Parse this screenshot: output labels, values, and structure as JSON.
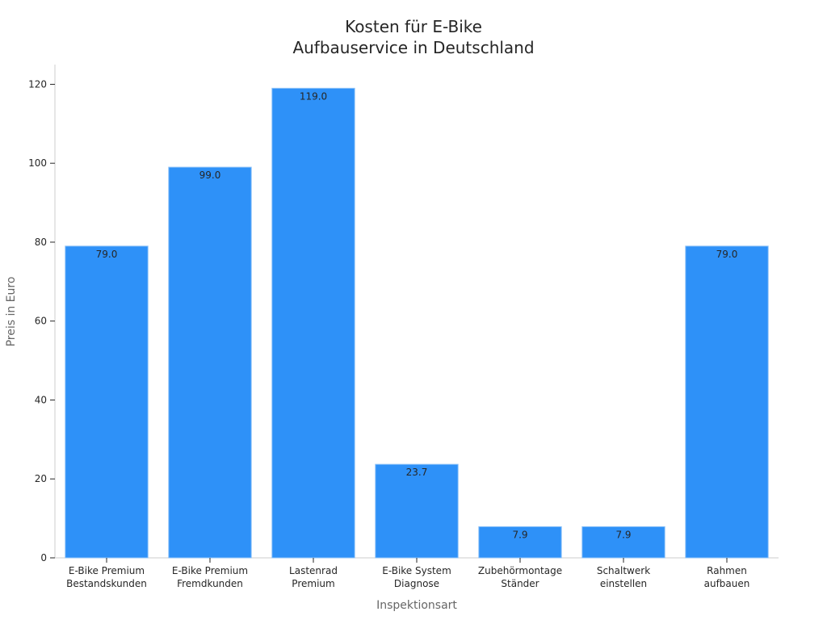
{
  "chart_data": {
    "type": "bar",
    "title_lines": [
      "Kosten für E-Bike",
      "Aufbauservice in Deutschland"
    ],
    "xlabel": "Inspektionsart",
    "ylabel": "Preis in Euro",
    "categories": [
      [
        "E-Bike Premium",
        "Bestandskunden"
      ],
      [
        "E-Bike Premium",
        "Fremdkunden"
      ],
      [
        "Lastenrad",
        "Premium"
      ],
      [
        "E-Bike System",
        "Diagnose"
      ],
      [
        "Zubehörmontage",
        "Ständer"
      ],
      [
        "Schaltwerk",
        "einstellen"
      ],
      [
        "Rahmen",
        "aufbauen"
      ]
    ],
    "values": [
      79.0,
      99.0,
      119.0,
      23.7,
      7.9,
      7.9,
      79.0
    ],
    "data_labels": [
      "79.0",
      "99.0",
      "119.0",
      "23.7",
      "7.9",
      "7.9",
      "79.0"
    ],
    "yticks": [
      0,
      20,
      40,
      60,
      80,
      100,
      120
    ],
    "ylim": [
      0,
      125
    ],
    "grid": false,
    "colors": {
      "bar": "#2e91f8",
      "bar_edge": "#8ec2f7",
      "text": "#262626",
      "axis_label": "#666666",
      "axis_line": "#cccccc"
    }
  }
}
